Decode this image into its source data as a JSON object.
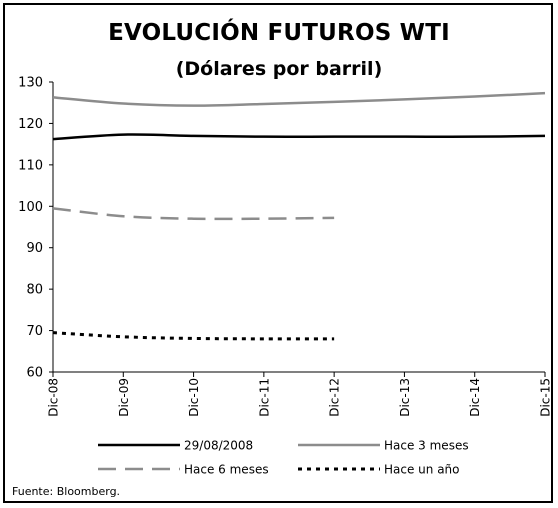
{
  "chart_data": {
    "type": "line",
    "title": "EVOLUCIÓN FUTUROS WTI",
    "subtitle": "(Dólares por barril)",
    "source": "Fuente: Bloomberg.",
    "categories": [
      "Dic-08",
      "Dic-09",
      "Dic-10",
      "Dic-11",
      "Dic-12",
      "Dic-13",
      "Dic-14",
      "Dic-15"
    ],
    "ylim": [
      60,
      130
    ],
    "yticks": [
      60,
      70,
      80,
      90,
      100,
      110,
      120,
      130
    ],
    "grid": false,
    "legend_position": "bottom",
    "series": [
      {
        "name": "29/08/2008",
        "color": "#000000",
        "dash": "solid",
        "values": [
          116.2,
          117.3,
          117.0,
          116.8,
          116.8,
          116.8,
          116.8,
          117.0
        ]
      },
      {
        "name": "Hace 3 meses",
        "color": "#8c8c8c",
        "dash": "solid",
        "values": [
          126.3,
          124.8,
          124.3,
          124.7,
          125.2,
          125.8,
          126.5,
          127.3
        ]
      },
      {
        "name": "Hace 6 meses",
        "color": "#8c8c8c",
        "dash": "dash",
        "values": [
          99.5,
          97.6,
          97.0,
          97.0,
          97.2,
          null,
          null,
          null
        ]
      },
      {
        "name": "Hace un año",
        "color": "#000000",
        "dash": "dot",
        "values": [
          69.5,
          68.5,
          68.1,
          68.0,
          68.0,
          null,
          null,
          null
        ]
      }
    ]
  }
}
